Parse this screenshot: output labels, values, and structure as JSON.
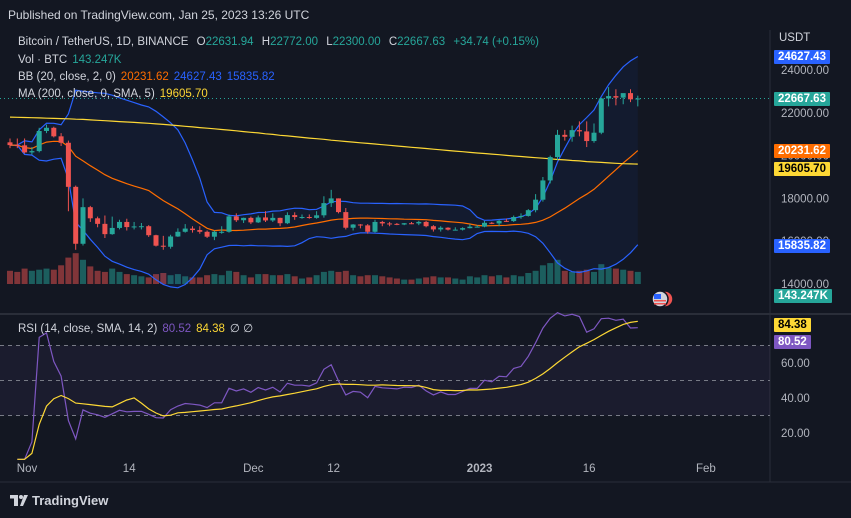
{
  "header": {
    "published": "Published on TradingView.com, Jan 25, 2023 13:26 UTC"
  },
  "legend": {
    "symbol": "Bitcoin / TetherUS, 1D, BINANCE",
    "open_label": "O",
    "open": "22631.94",
    "high_label": "H",
    "high": "22772.00",
    "low_label": "L",
    "low": "22300.00",
    "close_label": "C",
    "close": "22667.63",
    "change": "+34.74 (+0.15%)",
    "vol_label": "Vol · BTC",
    "vol": "143.247K",
    "bb_label": "BB (20, close, 2, 0)",
    "bb_mid": "20231.62",
    "bb_upper": "24627.43",
    "bb_lower": "15835.82",
    "ma_label": "MA (200, close, 0, SMA, 5)",
    "ma": "19605.70",
    "rsi_label": "RSI (14, close, SMA, 14, 2)",
    "rsi": "80.52",
    "rsi_ma": "84.38",
    "rsi_extra": "∅  ∅"
  },
  "axis": {
    "currency": "USDT",
    "price_ticks": [
      "24000.00",
      "22000.00",
      "20000.00",
      "18000.00",
      "16000.00",
      "14000.00"
    ],
    "rsi_ticks": [
      "60.00",
      "40.00",
      "20.00"
    ],
    "time_ticks": [
      "Nov",
      "14",
      "Dec",
      "12",
      "2023",
      "16",
      "Feb"
    ]
  },
  "tags": {
    "bb_upper": "24627.43",
    "close": "22667.63",
    "bb_mid": "20231.62",
    "ma": "19605.70",
    "bb_lower": "15835.82",
    "vol": "143.247K",
    "rsi_ma": "84.38",
    "rsi": "80.52"
  },
  "colors": {
    "up": "#26a69a",
    "down": "#ef5350",
    "bb": "#2962ff",
    "bb_mid": "#ff6d00",
    "ma": "#fdd835",
    "rsi": "#7e57c2"
  },
  "footer": {
    "brand": "TradingView"
  },
  "chart_data": {
    "type": "candlestick",
    "x": [
      "Oct 31",
      "Nov 01",
      "Nov 02",
      "Nov 03",
      "Nov 04",
      "Nov 05",
      "Nov 06",
      "Nov 07",
      "Nov 08",
      "Nov 09",
      "Nov 10",
      "Nov 11",
      "Nov 12",
      "Nov 13",
      "Nov 14",
      "Nov 15",
      "Nov 16",
      "Nov 17",
      "Nov 18",
      "Nov 19",
      "Nov 20",
      "Nov 21",
      "Nov 22",
      "Nov 23",
      "Nov 24",
      "Nov 25",
      "Nov 26",
      "Nov 27",
      "Nov 28",
      "Nov 29",
      "Nov 30",
      "Dec 01",
      "Dec 02",
      "Dec 03",
      "Dec 04",
      "Dec 05",
      "Dec 06",
      "Dec 07",
      "Dec 08",
      "Dec 09",
      "Dec 10",
      "Dec 11",
      "Dec 12",
      "Dec 13",
      "Dec 14",
      "Dec 15",
      "Dec 16",
      "Dec 17",
      "Dec 18",
      "Dec 19",
      "Dec 20",
      "Dec 21",
      "Dec 22",
      "Dec 23",
      "Dec 24",
      "Dec 25",
      "Dec 26",
      "Dec 27",
      "Dec 28",
      "Dec 29",
      "Dec 30",
      "Dec 31",
      "Jan 01",
      "Jan 02",
      "Jan 03",
      "Jan 04",
      "Jan 05",
      "Jan 06",
      "Jan 07",
      "Jan 08",
      "Jan 09",
      "Jan 10",
      "Jan 11",
      "Jan 12",
      "Jan 13",
      "Jan 14",
      "Jan 15",
      "Jan 16",
      "Jan 17",
      "Jan 18",
      "Jan 19",
      "Jan 20",
      "Jan 21",
      "Jan 22",
      "Jan 23",
      "Jan 24",
      "Jan 25"
    ],
    "open": [
      20620,
      20490,
      20480,
      20150,
      20210,
      21150,
      21300,
      20900,
      20600,
      18540,
      15880,
      17590,
      17070,
      16810,
      16330,
      16620,
      16900,
      16660,
      16690,
      16700,
      16280,
      15790,
      15740,
      16220,
      16440,
      16590,
      16520,
      16440,
      16210,
      16440,
      16440,
      17160,
      16980,
      17090,
      16880,
      17110,
      16970,
      17090,
      16840,
      17220,
      17130,
      17130,
      17090,
      17210,
      17780,
      18000,
      17360,
      16630,
      16780,
      16740,
      16440,
      16900,
      16830,
      16810,
      16780,
      16840,
      16830,
      16900,
      16700,
      16550,
      16630,
      16540,
      16540,
      16610,
      16680,
      16680,
      16860,
      16830,
      16950,
      16940,
      17130,
      17180,
      17450,
      17940,
      18840,
      19930,
      20970,
      20880,
      21190,
      21130,
      20680,
      21070,
      22670,
      22780,
      22710,
      22920,
      22630
    ],
    "high": [
      20800,
      20800,
      20800,
      20400,
      21300,
      21450,
      21350,
      21050,
      20700,
      18600,
      18000,
      17650,
      17150,
      17200,
      17150,
      17000,
      17050,
      16900,
      16850,
      16750,
      16300,
      16250,
      16300,
      16600,
      16800,
      16700,
      16700,
      16500,
      16500,
      16700,
      17250,
      17300,
      17100,
      17150,
      17200,
      17400,
      17300,
      17100,
      17350,
      17350,
      17250,
      17250,
      17400,
      18100,
      18400,
      18000,
      17550,
      16800,
      16800,
      16800,
      17000,
      16950,
      16900,
      16850,
      16850,
      16900,
      16950,
      16950,
      16750,
      16700,
      16650,
      16650,
      16650,
      16800,
      16750,
      16950,
      16900,
      17000,
      17050,
      17200,
      17300,
      17500,
      18200,
      19000,
      20000,
      21200,
      21200,
      21400,
      21600,
      21600,
      21500,
      22700,
      23200,
      23100,
      22900,
      23100,
      22800
    ],
    "low": [
      20350,
      20350,
      20100,
      20050,
      20150,
      21050,
      20850,
      20450,
      17400,
      15600,
      15800,
      16900,
      16650,
      16150,
      16300,
      16550,
      16500,
      16550,
      16550,
      16200,
      15750,
      15600,
      15650,
      16200,
      16400,
      16400,
      16350,
      16150,
      16050,
      16350,
      16400,
      16900,
      16850,
      16800,
      16850,
      16900,
      16900,
      16700,
      16800,
      17000,
      17050,
      17050,
      17050,
      17100,
      17600,
      17300,
      16550,
      16500,
      16600,
      16350,
      16400,
      16700,
      16700,
      16750,
      16750,
      16800,
      16750,
      16650,
      16450,
      16450,
      16500,
      16500,
      16500,
      16600,
      16650,
      16650,
      16800,
      16700,
      16900,
      16900,
      17050,
      17150,
      17350,
      17850,
      18700,
      19800,
      20700,
      20650,
      20900,
      20400,
      20600,
      21000,
      22300,
      22350,
      22400,
      22500,
      22300
    ],
    "close": [
      20490,
      20480,
      20150,
      20210,
      21150,
      21300,
      20900,
      20600,
      18540,
      15880,
      17590,
      17070,
      16810,
      16330,
      16620,
      16900,
      16660,
      16690,
      16700,
      16280,
      15790,
      15740,
      16220,
      16440,
      16590,
      16520,
      16440,
      16210,
      16440,
      16440,
      17160,
      16980,
      17090,
      16880,
      17110,
      16970,
      17090,
      16840,
      17220,
      17130,
      17130,
      17090,
      17210,
      17780,
      18000,
      17360,
      16630,
      16780,
      16740,
      16440,
      16900,
      16830,
      16810,
      16780,
      16840,
      16830,
      16900,
      16700,
      16550,
      16630,
      16540,
      16540,
      16610,
      16680,
      16680,
      16860,
      16830,
      16950,
      16940,
      17130,
      17180,
      17450,
      17940,
      18840,
      19930,
      20970,
      20880,
      21190,
      21130,
      20680,
      21070,
      22670,
      22780,
      22710,
      22920,
      22630,
      22668
    ],
    "volume": [
      60,
      55,
      70,
      60,
      65,
      70,
      65,
      85,
      120,
      140,
      110,
      80,
      60,
      55,
      70,
      55,
      45,
      40,
      35,
      30,
      45,
      50,
      40,
      45,
      35,
      30,
      30,
      40,
      45,
      40,
      60,
      55,
      40,
      30,
      45,
      45,
      40,
      40,
      45,
      35,
      25,
      30,
      40,
      55,
      60,
      55,
      60,
      40,
      35,
      40,
      40,
      35,
      30,
      25,
      20,
      20,
      25,
      30,
      35,
      30,
      30,
      25,
      20,
      35,
      30,
      40,
      35,
      40,
      30,
      40,
      35,
      50,
      60,
      85,
      95,
      110,
      60,
      55,
      60,
      65,
      55,
      90,
      75,
      70,
      65,
      60,
      55
    ],
    "ma200": [
      21800,
      21790,
      21780,
      21770,
      21760,
      21750,
      21740,
      21730,
      21720,
      21700,
      21690,
      21670,
      21650,
      21630,
      21610,
      21590,
      21570,
      21550,
      21530,
      21510,
      21480,
      21460,
      21430,
      21400,
      21370,
      21340,
      21310,
      21280,
      21250,
      21220,
      21190,
      21160,
      21120,
      21090,
      21060,
      21020,
      20990,
      20950,
      20920,
      20890,
      20850,
      20820,
      20790,
      20760,
      20720,
      20690,
      20660,
      20630,
      20600,
      20570,
      20540,
      20510,
      20480,
      20450,
      20420,
      20390,
      20360,
      20330,
      20300,
      20270,
      20240,
      20210,
      20180,
      20150,
      20120,
      20100,
      20070,
      20040,
      20010,
      19980,
      19960,
      19930,
      19900,
      19880,
      19850,
      19820,
      19800,
      19770,
      19750,
      19720,
      19700,
      19680,
      19660,
      19640,
      19620,
      19610,
      19605
    ],
    "rsi_scale": [
      20,
      80
    ]
  }
}
